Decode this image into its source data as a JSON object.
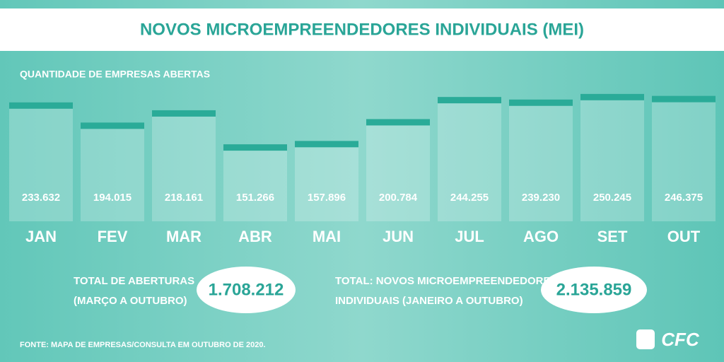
{
  "chart_data": {
    "type": "bar",
    "title": "NOVOS MICROEMPREENDEDORES INDIVIDUAIS (MEI)",
    "subtitle": "QUANTIDADE DE EMPRESAS ABERTAS",
    "categories": [
      "JAN",
      "FEV",
      "MAR",
      "ABR",
      "MAI",
      "JUN",
      "JUL",
      "AGO",
      "SET",
      "OUT"
    ],
    "values": [
      233632,
      194015,
      218161,
      151266,
      157896,
      200784,
      244255,
      239230,
      250245,
      246375
    ],
    "value_labels": [
      "233.632",
      "194.015",
      "218.161",
      "151.266",
      "157.896",
      "200.784",
      "244.255",
      "239.230",
      "250.245",
      "246.375"
    ],
    "color": "#2aab98",
    "ylim": [
      0,
      300000
    ],
    "totals": [
      {
        "lines": [
          "TOTAL DE ABERTURAS",
          "(MARÇO A OUTUBRO)"
        ],
        "total": "1.708.212"
      },
      {
        "lines": [
          "TOTAL: NOVOS MICROEMPREENDEDORES",
          "INDIVIDUAIS (JANEIRO A OUTUBRO)"
        ],
        "total": "2.135.859"
      }
    ],
    "source": "FONTE: MAPA DE EMPRESAS/CONSULTA EM OUTUBRO DE 2020.",
    "logo": "CFC"
  }
}
